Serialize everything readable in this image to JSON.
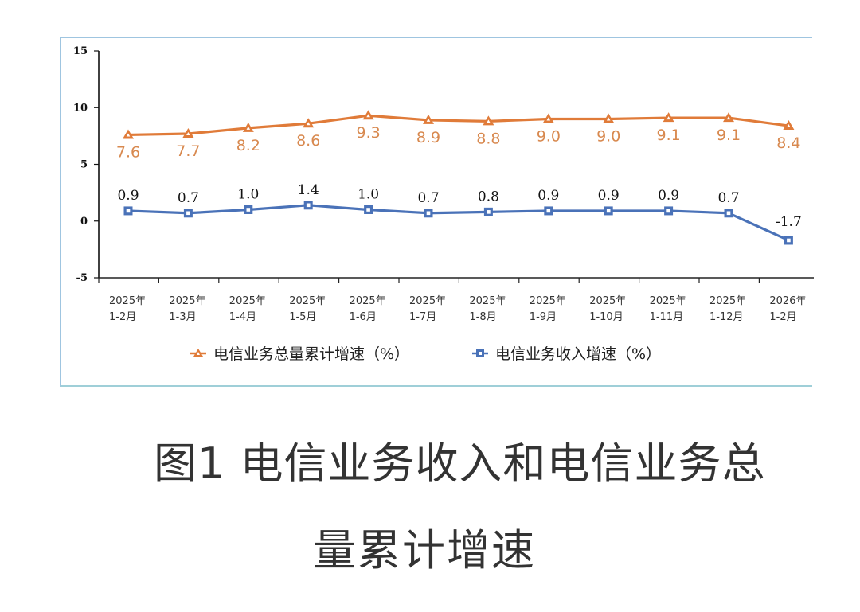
{
  "chart_data": {
    "type": "line",
    "title": "图1 电信业务收入和电信业务总量累计增速",
    "xlabel": "",
    "ylabel": "",
    "ylim": [
      -5,
      15
    ],
    "yticks": [
      15,
      10,
      5,
      0,
      -5
    ],
    "grid": false,
    "legend_position": "bottom",
    "categories": [
      [
        "2025年",
        "1-2月"
      ],
      [
        "2025年",
        "1-3月"
      ],
      [
        "2025年",
        "1-4月"
      ],
      [
        "2025年",
        "1-5月"
      ],
      [
        "2025年",
        "1-6月"
      ],
      [
        "2025年",
        "1-7月"
      ],
      [
        "2025年",
        "1-8月"
      ],
      [
        "2025年",
        "1-9月"
      ],
      [
        "2025年",
        "1-10月"
      ],
      [
        "2025年",
        "1-11月"
      ],
      [
        "2025年",
        "1-12月"
      ],
      [
        "2026年",
        "1-2月"
      ]
    ],
    "series": [
      {
        "name": "电信业务总量累计增速（%）",
        "color": "#e07b39",
        "marker": "triangle",
        "values": [
          7.6,
          7.7,
          8.2,
          8.6,
          9.3,
          8.9,
          8.8,
          9.0,
          9.0,
          9.1,
          9.1,
          8.4
        ],
        "labels": [
          "7.6",
          "7.7",
          "8.2",
          "8.6",
          "9.3",
          "8.9",
          "8.8",
          "9.0",
          "9.0",
          "9.1",
          "9.1",
          "8.4"
        ]
      },
      {
        "name": "电信业务收入增速（%）",
        "color": "#4a72b8",
        "marker": "square",
        "values": [
          0.9,
          0.7,
          1.0,
          1.4,
          1.0,
          0.7,
          0.8,
          0.9,
          0.9,
          0.9,
          0.7,
          -1.7
        ],
        "labels": [
          "0.9",
          "0.7",
          "1.0",
          "1.4",
          "1.0",
          "0.7",
          "0.8",
          "0.9",
          "0.9",
          "0.9",
          "0.7",
          "-1.7"
        ]
      }
    ]
  },
  "caption": {
    "line1": "图1 电信业务收入和电信业务总",
    "line2": "量累计增速"
  },
  "colors": {
    "frame_border": "#9fc5e0",
    "axis": "#111111",
    "orange_series": "#e07b39",
    "orange_label": "#d8894f",
    "blue_series": "#4a72b8",
    "caption_text": "#333333"
  }
}
